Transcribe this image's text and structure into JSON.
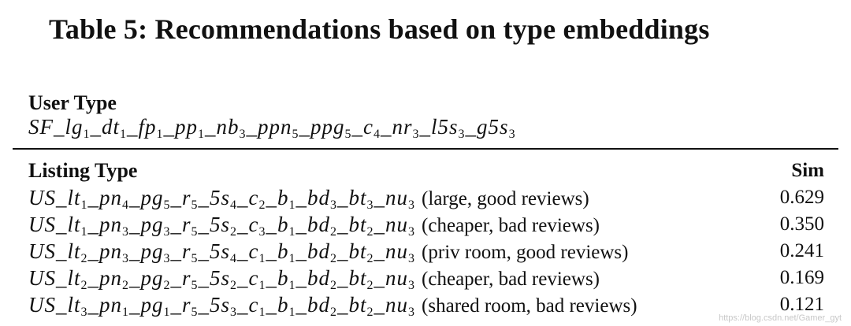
{
  "caption": "Table 5: Recommendations based on type embeddings",
  "user": {
    "header": "User Type",
    "type_parts": [
      [
        "SF_lg",
        "1"
      ],
      [
        "_dt",
        "1"
      ],
      [
        "_fp",
        "1"
      ],
      [
        "_pp",
        "1"
      ],
      [
        "_nb",
        "3"
      ],
      [
        "_ppn",
        "5"
      ],
      [
        "_ppg",
        "5"
      ],
      [
        "_c",
        "4"
      ],
      [
        "_nr",
        "3"
      ],
      [
        "_l5s",
        "3"
      ],
      [
        "_g5s",
        "3"
      ]
    ]
  },
  "table": {
    "header_listing": "Listing Type",
    "header_sim": "Sim",
    "rows": [
      {
        "type_parts": [
          [
            "US_lt",
            "1"
          ],
          [
            "_pn",
            "4"
          ],
          [
            "_pg",
            "5"
          ],
          [
            "_r",
            "5"
          ],
          [
            "_5s",
            "4"
          ],
          [
            "_c",
            "2"
          ],
          [
            "_b",
            "1"
          ],
          [
            "_bd",
            "3"
          ],
          [
            "_bt",
            "3"
          ],
          [
            "_nu",
            "3"
          ]
        ],
        "desc": "(large, good reviews)",
        "sim": "0.629"
      },
      {
        "type_parts": [
          [
            "US_lt",
            "1"
          ],
          [
            "_pn",
            "3"
          ],
          [
            "_pg",
            "3"
          ],
          [
            "_r",
            "5"
          ],
          [
            "_5s",
            "2"
          ],
          [
            "_c",
            "3"
          ],
          [
            "_b",
            "1"
          ],
          [
            "_bd",
            "2"
          ],
          [
            "_bt",
            "2"
          ],
          [
            "_nu",
            "3"
          ]
        ],
        "desc": "(cheaper, bad reviews)",
        "sim": "0.350"
      },
      {
        "type_parts": [
          [
            "US_lt",
            "2"
          ],
          [
            "_pn",
            "3"
          ],
          [
            "_pg",
            "3"
          ],
          [
            "_r",
            "5"
          ],
          [
            "_5s",
            "4"
          ],
          [
            "_c",
            "1"
          ],
          [
            "_b",
            "1"
          ],
          [
            "_bd",
            "2"
          ],
          [
            "_bt",
            "2"
          ],
          [
            "_nu",
            "3"
          ]
        ],
        "desc": "(priv room, good reviews)",
        "sim": "0.241"
      },
      {
        "type_parts": [
          [
            "US_lt",
            "2"
          ],
          [
            "_pn",
            "2"
          ],
          [
            "_pg",
            "2"
          ],
          [
            "_r",
            "5"
          ],
          [
            "_5s",
            "2"
          ],
          [
            "_c",
            "1"
          ],
          [
            "_b",
            "1"
          ],
          [
            "_bd",
            "2"
          ],
          [
            "_bt",
            "2"
          ],
          [
            "_nu",
            "3"
          ]
        ],
        "desc": "(cheaper, bad reviews)",
        "sim": "0.169"
      },
      {
        "type_parts": [
          [
            "US_lt",
            "3"
          ],
          [
            "_pn",
            "1"
          ],
          [
            "_pg",
            "1"
          ],
          [
            "_r",
            "5"
          ],
          [
            "_5s",
            "3"
          ],
          [
            "_c",
            "1"
          ],
          [
            "_b",
            "1"
          ],
          [
            "_bd",
            "2"
          ],
          [
            "_bt",
            "2"
          ],
          [
            "_nu",
            "3"
          ]
        ],
        "desc": "(shared room, bad reviews)",
        "sim": "0.121"
      }
    ]
  },
  "watermark": "https://blog.csdn.net/Gamer_gyt"
}
